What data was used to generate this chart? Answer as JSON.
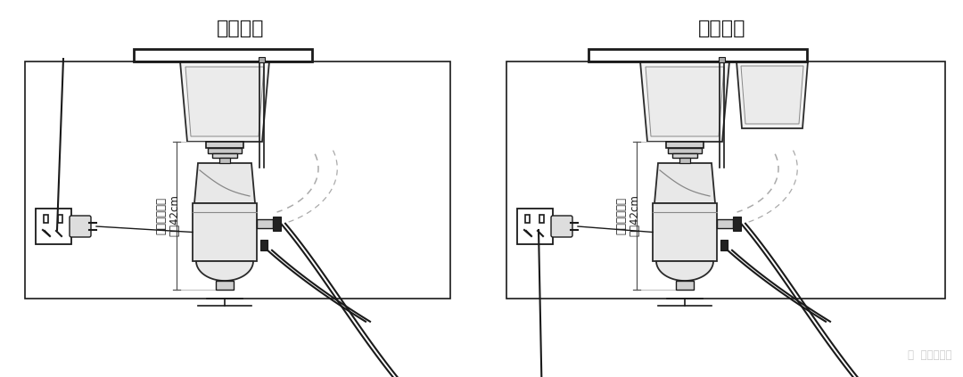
{
  "title_left": "单槽安装",
  "title_right": "双槽安装",
  "bg_color": "#ffffff",
  "line_color": "#2a2a2a",
  "dark_color": "#1a1a1a",
  "gray_color": "#888888",
  "light_gray": "#cccccc",
  "watermark_text": "值  什么值得买",
  "watermark_color": "#cccccc",
  "annotation_text": "水槽底至柜底\n至少42cm",
  "title_fontsize": 16,
  "annotation_fontsize": 8.5
}
